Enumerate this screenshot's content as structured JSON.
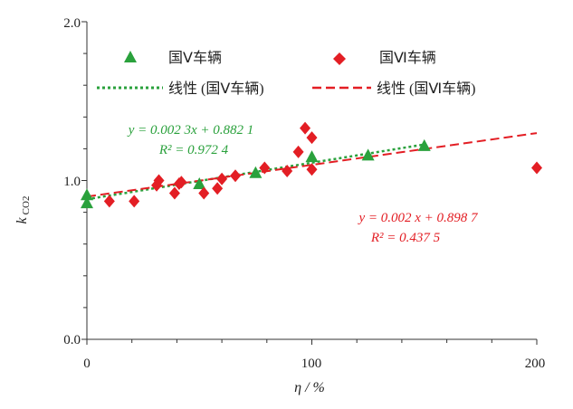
{
  "chart_data": {
    "type": "scatter",
    "xlabel": "η / %",
    "ylabel": "k",
    "ylabel_sub": "CO2",
    "xlim": [
      0,
      200
    ],
    "ylim": [
      0.0,
      2.0
    ],
    "xticks": [
      "0",
      "100",
      "200"
    ],
    "yticks": [
      "0.0",
      "1.0",
      "2.0"
    ],
    "legend_position": "top",
    "series": [
      {
        "name": "国Ⅴ车辆",
        "marker": "triangle",
        "color": "#2aa13c",
        "points": [
          {
            "x": 0,
            "y": 0.86
          },
          {
            "x": 0,
            "y": 0.91
          },
          {
            "x": 50,
            "y": 0.98
          },
          {
            "x": 75,
            "y": 1.05
          },
          {
            "x": 100,
            "y": 1.15
          },
          {
            "x": 125,
            "y": 1.16
          },
          {
            "x": 150,
            "y": 1.22
          }
        ],
        "fit": {
          "label": "线性 (国Ⅴ车辆)",
          "slope": 0.0023,
          "intercept": 0.8821,
          "x_range": [
            0,
            150
          ],
          "style": "dotted",
          "equation": "y = 0.002 3x + 0.882 1",
          "r2": "R² = 0.972 4"
        }
      },
      {
        "name": "国Ⅵ车辆",
        "marker": "diamond",
        "color": "#e31e24",
        "points": [
          {
            "x": 10,
            "y": 0.87
          },
          {
            "x": 21,
            "y": 0.87
          },
          {
            "x": 31,
            "y": 0.97
          },
          {
            "x": 32,
            "y": 1.0
          },
          {
            "x": 39,
            "y": 0.92
          },
          {
            "x": 41,
            "y": 0.98
          },
          {
            "x": 42,
            "y": 0.99
          },
          {
            "x": 52,
            "y": 0.92
          },
          {
            "x": 58,
            "y": 0.95
          },
          {
            "x": 60,
            "y": 1.01
          },
          {
            "x": 66,
            "y": 1.03
          },
          {
            "x": 79,
            "y": 1.08
          },
          {
            "x": 89,
            "y": 1.06
          },
          {
            "x": 94,
            "y": 1.18
          },
          {
            "x": 97,
            "y": 1.33
          },
          {
            "x": 100,
            "y": 1.27
          },
          {
            "x": 100,
            "y": 1.07
          },
          {
            "x": 200,
            "y": 1.08
          }
        ],
        "fit": {
          "label": "线性 (国Ⅵ车辆)",
          "slope": 0.002,
          "intercept": 0.8987,
          "x_range": [
            0,
            200
          ],
          "style": "dashed",
          "equation": "y = 0.002 x + 0.898 7",
          "r2": "R² = 0.437 5"
        }
      }
    ]
  }
}
